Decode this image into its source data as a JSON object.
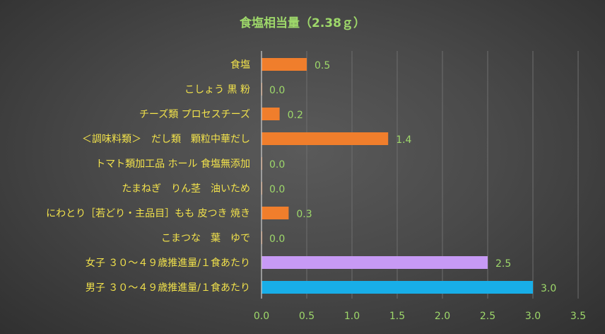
{
  "chart_data": {
    "type": "bar",
    "orientation": "horizontal",
    "title": "食塩相当量（2.38ｇ）",
    "categories": [
      "食塩",
      "こしょう 黒 粉",
      "チーズ類 プロセスチーズ",
      "＜調味料類＞　だし類　顆粒中華だし",
      "トマト類加工品 ホール 食塩無添加",
      "たまねぎ　りん茎　油いため",
      "にわとり［若どり・主品目］もも 皮つき 焼き",
      "こまつな　葉　ゆで",
      "女子 ３０～４９歳推進量/１食あたり",
      "男子 ３０～４９歳推進量/１食あたり"
    ],
    "values": [
      0.5,
      0.0,
      0.2,
      1.4,
      0.0,
      0.0,
      0.3,
      0.0,
      2.5,
      3.0
    ],
    "value_labels": [
      "0.5",
      "0.0",
      "0.2",
      "1.4",
      "0.0",
      "0.0",
      "0.3",
      "0.0",
      "2.5",
      "3.0"
    ],
    "bar_colors": [
      "#f07e2c",
      "#f07e2c",
      "#f07e2c",
      "#f07e2c",
      "#f07e2c",
      "#f07e2c",
      "#f07e2c",
      "#f07e2c",
      "#c79af5",
      "#18aee8"
    ],
    "xlim": [
      0,
      3.5
    ],
    "xticks": [
      "0.0",
      "0.5",
      "1.0",
      "1.5",
      "2.0",
      "2.5",
      "3.0",
      "3.5"
    ],
    "grid": true,
    "legend": "none",
    "colors": {
      "title": "#9ed86a",
      "category_labels": "#f2e24b",
      "value_labels": "#9ed86a",
      "tick_labels": "#9ed86a",
      "gridlines": "#6e6e6e"
    }
  }
}
